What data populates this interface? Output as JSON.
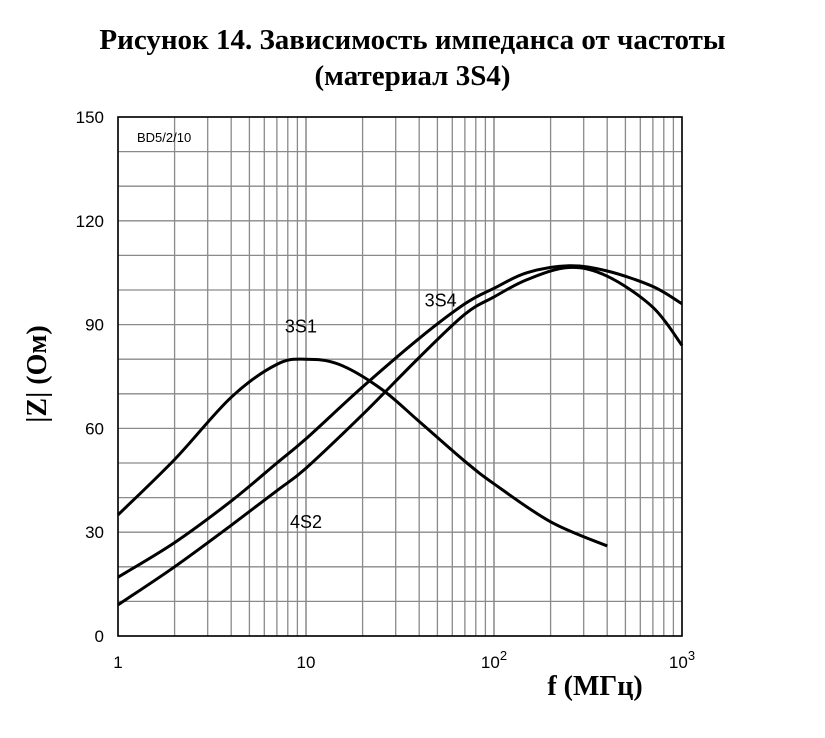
{
  "chart_data": {
    "type": "line",
    "title_line1": "Рисунок 14. Зависимость импеданса от частоты",
    "title_line2": "(материал 3S4)",
    "xlabel": "f (МГц)",
    "ylabel": "|Z| (Ом)",
    "annotation": "BD5/2/10",
    "x_scale": "log",
    "xlim": [
      1,
      1000
    ],
    "ylim": [
      0,
      150
    ],
    "grid": true,
    "x_ticks": [
      {
        "value": 1,
        "label": "1"
      },
      {
        "value": 10,
        "label": "10"
      },
      {
        "value": 100,
        "label": "10",
        "sup": "2"
      },
      {
        "value": 1000,
        "label": "10",
        "sup": "3"
      }
    ],
    "y_ticks": [
      {
        "value": 0,
        "label": "0"
      },
      {
        "value": 30,
        "label": "30"
      },
      {
        "value": 60,
        "label": "60"
      },
      {
        "value": 90,
        "label": "90"
      },
      {
        "value": 120,
        "label": "120"
      },
      {
        "value": 150,
        "label": "150"
      }
    ],
    "series": [
      {
        "name": "3S1",
        "label_at": [
          9.4,
          89.5
        ],
        "points": [
          [
            1,
            35
          ],
          [
            2,
            51
          ],
          [
            4,
            69
          ],
          [
            7,
            78.5
          ],
          [
            10,
            80
          ],
          [
            15,
            78.5
          ],
          [
            25,
            71.5
          ],
          [
            40,
            62
          ],
          [
            70,
            50.5
          ],
          [
            100,
            44
          ],
          [
            200,
            33
          ],
          [
            400,
            26
          ]
        ]
      },
      {
        "name": "3S4",
        "label_at": [
          52,
          97
        ],
        "points": [
          [
            1,
            17
          ],
          [
            2,
            27
          ],
          [
            4,
            39
          ],
          [
            7,
            50
          ],
          [
            10,
            57
          ],
          [
            20,
            72
          ],
          [
            40,
            86
          ],
          [
            70,
            96
          ],
          [
            100,
            100.5
          ],
          [
            150,
            105
          ],
          [
            250,
            107
          ],
          [
            400,
            105.5
          ],
          [
            700,
            101
          ],
          [
            1000,
            96
          ]
        ]
      },
      {
        "name": "4S2",
        "label_at": [
          10,
          33
        ],
        "points": [
          [
            1,
            9
          ],
          [
            2,
            20
          ],
          [
            4,
            32
          ],
          [
            7,
            42
          ],
          [
            10,
            48.5
          ],
          [
            20,
            64
          ],
          [
            40,
            80.5
          ],
          [
            70,
            93
          ],
          [
            100,
            98
          ],
          [
            150,
            103
          ],
          [
            250,
            106.5
          ],
          [
            400,
            104
          ],
          [
            700,
            95
          ],
          [
            1000,
            84
          ]
        ]
      }
    ]
  }
}
